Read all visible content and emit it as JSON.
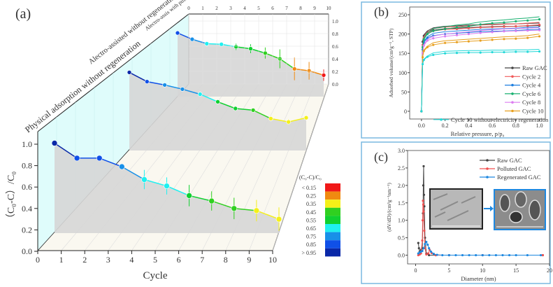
{
  "panel_labels": {
    "a": "(a)",
    "b": "(b)",
    "c": "(c)"
  },
  "colorbar": {
    "title": "(C₀-C)/C₀",
    "labels": [
      "< 0.15",
      "0.25",
      "0.35",
      "0.45",
      "0.55",
      "0.65",
      "0.75",
      "0.85",
      "> 0.95"
    ],
    "colors": [
      "#f01818",
      "#f08a10",
      "#f4f018",
      "#30d020",
      "#10d030",
      "#20f0f0",
      "#1890e8",
      "#1050e8",
      "#0a28a8"
    ]
  },
  "chart_data": [
    {
      "type": "line",
      "panel": "a",
      "xlabel": "Cycle",
      "ylabel": "（C₀-C）/C₀",
      "xticks": [
        0,
        1,
        2,
        3,
        4,
        5,
        6,
        7,
        8,
        9,
        10
      ],
      "yticks": [
        "0.0",
        "0.2",
        "0.4",
        "0.6",
        "0.8",
        "1.0"
      ],
      "back_xticks": [
        0,
        1,
        2,
        3,
        4,
        5,
        6,
        7,
        8,
        9,
        10
      ],
      "back_yticks": [
        "0.0",
        "0.2",
        "0.4",
        "0.6",
        "0.8",
        "1.0"
      ],
      "xlim": [
        0,
        10
      ],
      "ylim": [
        0,
        1.0
      ],
      "series": [
        {
          "name": "Physical adsorption without regeneration",
          "values": [
            1.01,
            0.87,
            0.87,
            0.79,
            0.67,
            0.61,
            0.52,
            0.47,
            0.4,
            0.38,
            0.3
          ],
          "errors": [
            0,
            0,
            0.01,
            0.02,
            0.09,
            0.08,
            0.1,
            0.09,
            0.1,
            0.1,
            0.11
          ]
        },
        {
          "name": "Alectro-assisted without regeneration",
          "values": [
            0.93,
            0.82,
            0.78,
            0.73,
            0.67,
            0.58,
            0.5,
            0.48,
            0.38,
            0.34,
            0.39
          ],
          "errors": [
            0,
            0,
            0,
            0,
            0,
            0,
            0.02,
            0,
            0.02,
            0.03,
            0
          ]
        },
        {
          "name": "Alectro-assis with pulse regeneration",
          "values": [
            0.81,
            0.71,
            0.64,
            0.63,
            0.59,
            0.56,
            0.49,
            0.4,
            0.24,
            0.21,
            0.14
          ],
          "errors": [
            0,
            0.03,
            0,
            0.03,
            0.05,
            0.07,
            0.09,
            0.15,
            0.18,
            0.14,
            0.09
          ]
        }
      ]
    },
    {
      "type": "line",
      "panel": "b",
      "xlabel": "Relative pressure, p/p₀",
      "ylabel": "Adsorbed volume/(cm³g⁻¹, STP)",
      "xlim": [
        -0.1,
        1.05
      ],
      "ylim": [
        -20,
        270
      ],
      "xticks": [
        "0.0",
        "0.2",
        "0.4",
        "0.6",
        "0.8",
        "1.0"
      ],
      "yticks": [
        "0",
        "50",
        "100",
        "150",
        "200",
        "250"
      ],
      "x": [
        0,
        0.01,
        0.02,
        0.05,
        0.1,
        0.2,
        0.3,
        0.4,
        0.5,
        0.6,
        0.7,
        0.8,
        0.9,
        1.0
      ],
      "legend": "bottom-right",
      "series": [
        {
          "name": "Raw GAC",
          "color": "#444444",
          "values": [
            0,
            180,
            195,
            205,
            210,
            214,
            215,
            217,
            218,
            219,
            220,
            220,
            221,
            222
          ]
        },
        {
          "name": "Cycle 2",
          "color": "#f05a5a",
          "values": [
            0,
            172,
            190,
            202,
            208,
            212,
            213,
            215,
            217,
            218,
            219,
            220,
            222,
            224
          ]
        },
        {
          "name": "Cycle 4",
          "color": "#1e7fe0",
          "values": [
            0,
            160,
            178,
            190,
            196,
            200,
            202,
            204,
            206,
            207,
            208,
            209,
            211,
            212
          ]
        },
        {
          "name": "Cycle 6",
          "color": "#18b070",
          "values": [
            0,
            166,
            186,
            200,
            208,
            213,
            217,
            220,
            225,
            228,
            230,
            233,
            235,
            238
          ]
        },
        {
          "name": "Cycle 8",
          "color": "#dd7ef0",
          "values": [
            0,
            150,
            170,
            183,
            189,
            194,
            197,
            200,
            203,
            205,
            207,
            208,
            209,
            210
          ]
        },
        {
          "name": "Cycle 10",
          "color": "#e8a020",
          "values": [
            0,
            140,
            156,
            166,
            172,
            177,
            179,
            181,
            183,
            185,
            187,
            188,
            190,
            194
          ]
        },
        {
          "name": "Cycle 10 without electricity regeneration",
          "color": "#22d8d8",
          "values": [
            0,
            122,
            133,
            141,
            146,
            150,
            151,
            152,
            152,
            153,
            153,
            154,
            154,
            155
          ]
        }
      ]
    },
    {
      "type": "line",
      "panel": "c",
      "xlabel": "Diameter (nm)",
      "ylabel": "(dV/dD)/(cm³g⁻¹nm⁻¹)",
      "xlim": [
        -1.2,
        20
      ],
      "ylim": [
        -0.25,
        3.0
      ],
      "xticks": [
        "0",
        "5",
        "10",
        "15",
        "20"
      ],
      "yticks": [
        "0.0",
        "0.5",
        "1.0",
        "1.5",
        "2.0",
        "2.5",
        "3.0"
      ],
      "legend": "top-right",
      "series": [
        {
          "name": "Raw GAC",
          "color": "#444444",
          "x": [
            0.4,
            0.5,
            0.6,
            0.8,
            1.0,
            1.1,
            1.15,
            1.2,
            1.25,
            1.3,
            1.4,
            1.6,
            2,
            3,
            5,
            10,
            19
          ],
          "values": [
            0.35,
            0.2,
            0.1,
            0.15,
            0.2,
            1.2,
            2.0,
            2.55,
            1.73,
            1.4,
            0.5,
            0.05,
            0,
            0,
            0,
            0,
            0
          ]
        },
        {
          "name": "Polluted GAC",
          "color": "#f05050",
          "x": [
            0.4,
            0.6,
            0.8,
            1.0,
            1.05,
            1.1,
            1.15,
            1.2,
            1.3,
            1.4,
            1.6,
            1.9,
            2.1,
            2.4,
            3,
            5,
            10,
            19
          ],
          "values": [
            0.0,
            0.02,
            0.05,
            0.42,
            1.0,
            1.56,
            1.45,
            1.25,
            0.7,
            0.2,
            0.02,
            0.05,
            0.15,
            0.06,
            0,
            0,
            0,
            0
          ]
        },
        {
          "name": "Regenerated GAC",
          "color": "#1e88e0",
          "x": [
            0.4,
            0.6,
            0.8,
            1.0,
            1.2,
            1.4,
            1.6,
            1.8,
            2.0,
            2.3,
            2.7,
            3.2,
            4,
            5,
            6,
            7,
            8,
            9,
            10,
            11,
            12,
            13,
            14,
            15,
            16.7,
            18.7
          ],
          "values": [
            0.05,
            0.08,
            0.1,
            0.12,
            0.2,
            0.32,
            0.38,
            0.3,
            0.2,
            0.1,
            0.04,
            0.01,
            0,
            0,
            0,
            0,
            0,
            0,
            0,
            0,
            0,
            0,
            0,
            0,
            0,
            0
          ]
        }
      ]
    }
  ]
}
